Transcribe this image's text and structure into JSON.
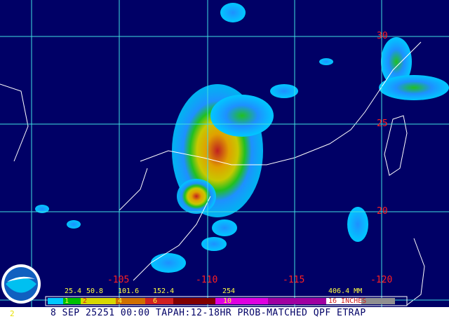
{
  "title": "8 SEP 25251 00:00 TAPAH:12-18HR PROB-MATCHED QPF ETRAP",
  "footer_number": "2",
  "logo_text": "NOAA",
  "latitude_labels": [
    "30",
    "25",
    "20"
  ],
  "longitude_labels": [
    "-105",
    "-110",
    "-115",
    "-120"
  ],
  "legend": {
    "mm_labels": [
      "25.4",
      "50.8",
      "101.6",
      "152.4",
      "254",
      "406.4 MM"
    ],
    "inch_labels": [
      "1",
      "2",
      "4",
      "6",
      "10",
      "16 INCHES"
    ],
    "colors": [
      "#00c8ff",
      "#00c000",
      "#e8e800",
      "#e08000",
      "#d02020",
      "#700000",
      "#ff00ff",
      "#ffffff",
      "#808080"
    ]
  },
  "colors": {
    "background": "#000066",
    "grid": "#40e0e0",
    "labels": "#ff2020",
    "coast": "#ffffff"
  }
}
